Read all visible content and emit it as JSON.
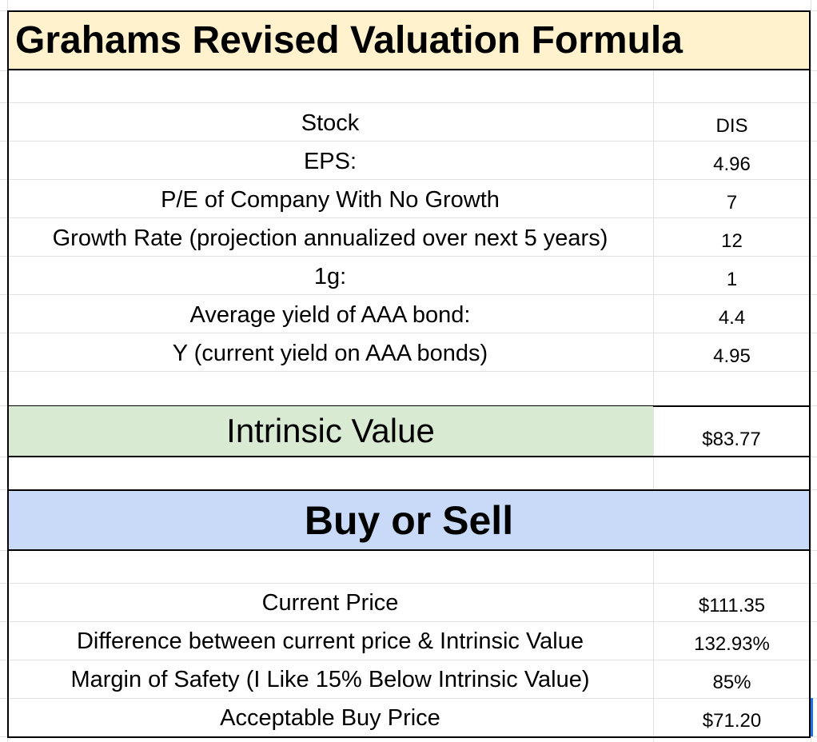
{
  "title": "Grahams Revised Valuation Formula",
  "inputs": [
    {
      "label": "Stock",
      "value": "DIS"
    },
    {
      "label": "EPS:",
      "value": "4.96"
    },
    {
      "label": "P/E of Company With No Growth",
      "value": "7"
    },
    {
      "label": "Growth Rate (projection annualized over next 5 years)",
      "value": "12"
    },
    {
      "label": "1g:",
      "value": "1"
    },
    {
      "label": "Average yield of AAA bond:",
      "value": "4.4"
    },
    {
      "label": "Y (current yield on AAA bonds)",
      "value": "4.95"
    }
  ],
  "intrinsic": {
    "label": "Intrinsic Value",
    "value": "$83.77"
  },
  "buy_sell": {
    "heading": "Buy or Sell"
  },
  "results": [
    {
      "label": "Current Price",
      "value": "$111.35"
    },
    {
      "label": "Difference between current price & Intrinsic Value",
      "value": "132.93%"
    },
    {
      "label": "Margin of Safety (I Like 15% Below Intrinsic Value)",
      "value": "85%"
    },
    {
      "label": "Acceptable Buy Price",
      "value": "$71.20"
    }
  ],
  "colors": {
    "title_bg": "#fff2cc",
    "intrinsic_bg": "#d9ead3",
    "buy_sell_bg": "#c9daf8",
    "selection": "#1a73e8"
  }
}
